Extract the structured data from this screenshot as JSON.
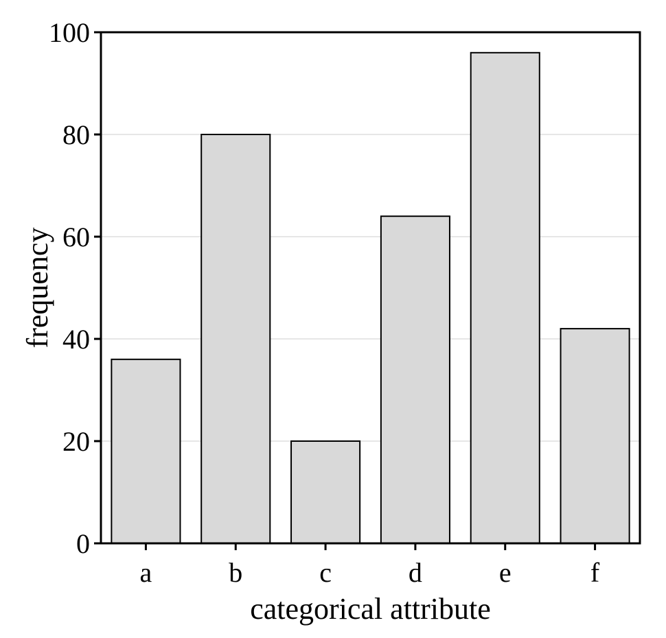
{
  "chart_data": {
    "type": "bar",
    "title": "",
    "xlabel": "categorical attribute",
    "ylabel": "frequency",
    "categories": [
      "a",
      "b",
      "c",
      "d",
      "e",
      "f"
    ],
    "values": [
      36,
      80,
      20,
      64,
      96,
      42
    ],
    "ylim": [
      0,
      100
    ],
    "yticks": [
      0,
      20,
      40,
      60,
      80,
      100
    ],
    "grid": true,
    "legend": "none",
    "colors": {
      "bar_fill": "#d9d9d9",
      "bar_stroke": "#000000",
      "grid": "#e6e6e6",
      "axis": "#000000"
    }
  }
}
